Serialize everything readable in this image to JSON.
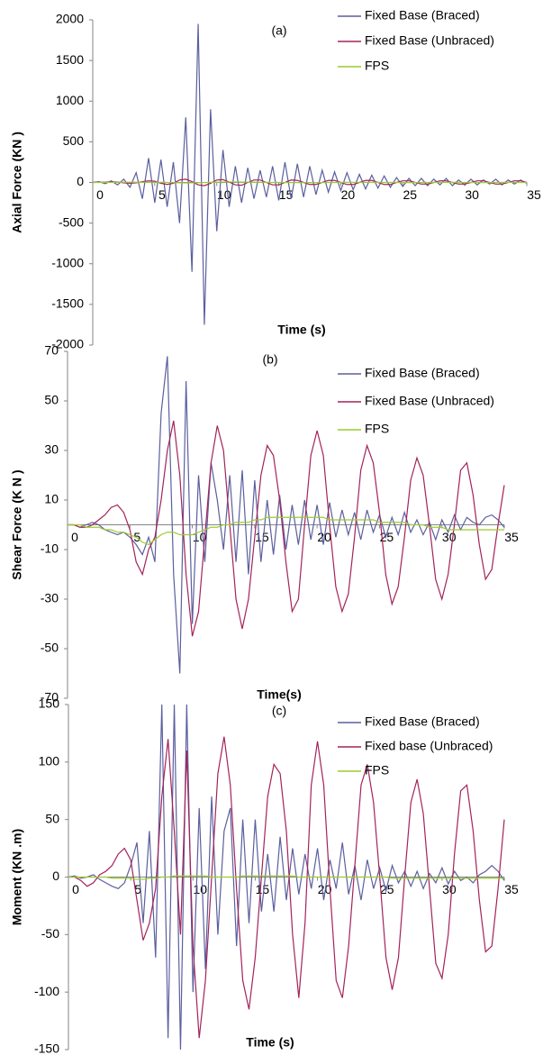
{
  "chart_data": [
    {
      "type": "line",
      "title": "(a)",
      "x_label": "Time (s)",
      "y_label": "Axial Force (KN )",
      "legend": "upper right",
      "x": [
        0,
        0.5,
        1,
        1.5,
        2,
        2.5,
        3,
        3.5,
        4,
        4.5,
        5,
        5.5,
        6,
        6.5,
        7,
        7.5,
        8,
        8.5,
        9,
        9.5,
        10,
        10.5,
        11,
        11.5,
        12,
        12.5,
        13,
        13.5,
        14,
        14.5,
        15,
        15.5,
        16,
        16.5,
        17,
        17.5,
        18,
        18.5,
        19,
        19.5,
        20,
        20.5,
        21,
        21.5,
        22,
        22.5,
        23,
        23.5,
        24,
        24.5,
        25,
        25.5,
        26,
        26.5,
        27,
        27.5,
        28,
        28.5,
        29,
        29.5,
        30,
        30.5,
        31,
        31.5,
        32,
        32.5,
        33,
        33.5,
        34,
        34.5,
        35
      ],
      "xlim": [
        0,
        35
      ],
      "xticks": [
        0,
        5,
        10,
        15,
        20,
        25,
        30,
        35
      ],
      "ylim": [
        -2000,
        2000
      ],
      "yticks": [
        2000,
        1500,
        1000,
        500,
        0,
        -500,
        -1000,
        -1500,
        -2000
      ],
      "series": [
        {
          "name": "Fixed Base (Braced)",
          "color": "#5b5f9e",
          "values": [
            0,
            10,
            -15,
            20,
            -30,
            40,
            -60,
            120,
            -200,
            300,
            -250,
            280,
            -300,
            250,
            -500,
            800,
            -1100,
            1950,
            -1750,
            900,
            -600,
            400,
            -300,
            200,
            -250,
            180,
            -200,
            150,
            -180,
            200,
            -220,
            250,
            -200,
            230,
            -180,
            200,
            -150,
            150,
            -120,
            130,
            -100,
            120,
            -90,
            100,
            -80,
            90,
            -70,
            80,
            -60,
            60,
            -50,
            50,
            -40,
            50,
            -40,
            40,
            -30,
            50,
            -40,
            30,
            -30,
            40,
            -30,
            30,
            -20,
            40,
            -30,
            30,
            -20,
            30,
            -10
          ]
        },
        {
          "name": "Fixed Base (Unbraced)",
          "color": "#a3235a",
          "values": [
            0,
            2,
            5,
            8,
            5,
            -5,
            -10,
            -5,
            10,
            20,
            15,
            -10,
            -25,
            -10,
            30,
            40,
            10,
            -30,
            -40,
            -10,
            30,
            35,
            5,
            -30,
            -35,
            0,
            30,
            30,
            0,
            -30,
            -30,
            0,
            30,
            25,
            0,
            -25,
            -25,
            0,
            25,
            25,
            0,
            -25,
            -25,
            0,
            25,
            25,
            0,
            -25,
            -25,
            0,
            20,
            20,
            0,
            -20,
            -20,
            0,
            20,
            20,
            0,
            -20,
            -20,
            0,
            20,
            20,
            0,
            -20,
            -20,
            0,
            20,
            20,
            0
          ]
        },
        {
          "name": "FPS",
          "color": "#9ccb2f",
          "values": [
            0,
            0,
            1,
            1,
            2,
            2,
            3,
            3,
            3,
            2,
            2,
            1,
            0,
            -2,
            -4,
            -6,
            -5,
            -3,
            -1,
            1,
            3,
            5,
            6,
            6,
            5,
            4,
            3,
            2,
            1,
            0,
            0,
            -1,
            -1,
            -2,
            -2,
            -2,
            -1,
            -1,
            0,
            0,
            1,
            1,
            1,
            2,
            2,
            1,
            1,
            0,
            0,
            0,
            -1,
            -1,
            -1,
            0,
            0,
            0,
            1,
            1,
            1,
            0,
            0,
            0,
            -1,
            -1,
            0,
            0,
            0,
            1,
            1,
            0,
            0
          ]
        }
      ]
    },
    {
      "type": "line",
      "title": "(b)",
      "x_label": "Time(s)",
      "y_label": "Shear Force (K N )",
      "legend": "upper right",
      "x": [
        0,
        0.5,
        1,
        1.5,
        2,
        2.5,
        3,
        3.5,
        4,
        4.5,
        5,
        5.5,
        6,
        6.5,
        7,
        7.5,
        8,
        8.5,
        9,
        9.5,
        10,
        10.5,
        11,
        11.5,
        12,
        12.5,
        13,
        13.5,
        14,
        14.5,
        15,
        15.5,
        16,
        16.5,
        17,
        17.5,
        18,
        18.5,
        19,
        19.5,
        20,
        20.5,
        21,
        21.5,
        22,
        22.5,
        23,
        23.5,
        24,
        24.5,
        25,
        25.5,
        26,
        26.5,
        27,
        27.5,
        28,
        28.5,
        29,
        29.5,
        30,
        30.5,
        31,
        31.5,
        32,
        32.5,
        33,
        33.5,
        34,
        34.5,
        35
      ],
      "xlim": [
        0,
        35
      ],
      "xticks": [
        0,
        5,
        10,
        15,
        20,
        25,
        30,
        35
      ],
      "ylim": [
        -70,
        70
      ],
      "yticks": [
        70,
        50,
        30,
        10,
        -10,
        -30,
        -50,
        -70
      ],
      "series": [
        {
          "name": "Fixed Base (Braced)",
          "color": "#5b5f9e",
          "values": [
            0,
            0,
            -1,
            0,
            1,
            0,
            -2,
            -3,
            -4,
            -3,
            -5,
            -8,
            -12,
            -5,
            -15,
            45,
            68,
            -20,
            -60,
            58,
            -40,
            20,
            -15,
            25,
            10,
            -10,
            20,
            -15,
            22,
            -20,
            18,
            -15,
            10,
            -12,
            12,
            -10,
            8,
            -8,
            10,
            -6,
            8,
            -8,
            9,
            -5,
            6,
            -4,
            5,
            -6,
            6,
            -3,
            4,
            -5,
            3,
            -4,
            5,
            -3,
            2,
            -4,
            1,
            -6,
            2,
            -3,
            4,
            -2,
            3,
            1,
            0,
            3,
            4,
            2,
            -1
          ]
        },
        {
          "name": "Fixed Base (Unbraced)",
          "color": "#a3235a",
          "values": [
            0,
            0,
            -1,
            -1,
            0,
            2,
            4,
            7,
            8,
            5,
            -2,
            -15,
            -20,
            -10,
            -5,
            10,
            30,
            42,
            20,
            -20,
            -45,
            -35,
            -5,
            25,
            40,
            30,
            0,
            -30,
            -42,
            -30,
            -5,
            20,
            32,
            28,
            10,
            -15,
            -35,
            -30,
            0,
            28,
            38,
            28,
            0,
            -25,
            -35,
            -28,
            -5,
            22,
            32,
            25,
            5,
            -20,
            -32,
            -25,
            -5,
            18,
            27,
            20,
            0,
            -22,
            -30,
            -20,
            0,
            22,
            25,
            12,
            -8,
            -22,
            -18,
            0,
            16
          ]
        },
        {
          "name": "FPS",
          "color": "#9ccb2f",
          "values": [
            0,
            0,
            0,
            -1,
            -1,
            -1,
            -2,
            -2,
            -3,
            -3,
            -4,
            -5,
            -7,
            -8,
            -6,
            -4,
            -3,
            -3,
            -4,
            -4,
            -4,
            -3,
            -2,
            -1,
            -1,
            0,
            0,
            1,
            1,
            1,
            2,
            2,
            3,
            3,
            3,
            3,
            3,
            3,
            3,
            3,
            3,
            3,
            2,
            2,
            2,
            2,
            2,
            2,
            2,
            2,
            1,
            1,
            1,
            1,
            1,
            0,
            0,
            0,
            -1,
            -1,
            -1,
            -2,
            -2,
            -2,
            -2,
            -2,
            -2,
            -2,
            -2,
            -2,
            -2
          ]
        }
      ]
    },
    {
      "type": "line",
      "title": "(c)",
      "x_label": "Time (s)",
      "y_label": "Moment (KN .m)",
      "legend": "upper right",
      "x": [
        0,
        0.5,
        1,
        1.5,
        2,
        2.5,
        3,
        3.5,
        4,
        4.5,
        5,
        5.5,
        6,
        6.5,
        7,
        7.5,
        8,
        8.5,
        9,
        9.5,
        10,
        10.5,
        11,
        11.5,
        12,
        12.5,
        13,
        13.5,
        14,
        14.5,
        15,
        15.5,
        16,
        16.5,
        17,
        17.5,
        18,
        18.5,
        19,
        19.5,
        20,
        20.5,
        21,
        21.5,
        22,
        22.5,
        23,
        23.5,
        24,
        24.5,
        25,
        25.5,
        26,
        26.5,
        27,
        27.5,
        28,
        28.5,
        29,
        29.5,
        30,
        30.5,
        31,
        31.5,
        32,
        32.5,
        33,
        33.5,
        34,
        34.5,
        35
      ],
      "xlim": [
        0,
        35
      ],
      "xticks": [
        0,
        5,
        10,
        15,
        20,
        25,
        30,
        35
      ],
      "ylim": [
        -150,
        150
      ],
      "yticks": [
        150,
        100,
        50,
        0,
        -50,
        -100,
        -150
      ],
      "series": [
        {
          "name": "Fixed Base (Braced)",
          "color": "#5b5f9e",
          "values": [
            0,
            1,
            -1,
            0,
            2,
            -2,
            -5,
            -8,
            -10,
            -5,
            10,
            30,
            -40,
            40,
            -70,
            150,
            -140,
            150,
            -150,
            150,
            -100,
            60,
            -80,
            70,
            -50,
            40,
            60,
            -60,
            50,
            -40,
            50,
            -30,
            20,
            -30,
            35,
            -20,
            25,
            -15,
            20,
            -10,
            25,
            -20,
            15,
            -10,
            30,
            -15,
            10,
            -20,
            15,
            -10,
            8,
            -12,
            10,
            -5,
            5,
            -8,
            5,
            -10,
            3,
            -5,
            8,
            -6,
            5,
            -3,
            0,
            -5,
            2,
            5,
            10,
            5,
            -3
          ]
        },
        {
          "name": "Fixed base (Unbraced)",
          "color": "#a3235a",
          "values": [
            0,
            0,
            -3,
            -8,
            -5,
            2,
            5,
            10,
            20,
            25,
            15,
            -20,
            -55,
            -40,
            -10,
            70,
            120,
            40,
            -50,
            110,
            -60,
            -140,
            -90,
            0,
            90,
            122,
            80,
            -10,
            -90,
            -115,
            -70,
            0,
            70,
            98,
            90,
            40,
            -50,
            -105,
            -40,
            80,
            118,
            80,
            -10,
            -90,
            -105,
            -60,
            10,
            80,
            98,
            65,
            0,
            -70,
            -98,
            -70,
            0,
            65,
            85,
            55,
            -10,
            -75,
            -88,
            -50,
            20,
            75,
            80,
            40,
            -20,
            -65,
            -60,
            -10,
            50
          ]
        },
        {
          "name": "FPS",
          "color": "#9ccb2f",
          "values": [
            0,
            0,
            0,
            0,
            0,
            0,
            0,
            -1,
            -1,
            -1,
            -1,
            -2,
            -2,
            -1,
            -1,
            0,
            0,
            1,
            1,
            1,
            1,
            1,
            1,
            0,
            0,
            0,
            0,
            0,
            1,
            1,
            1,
            1,
            1,
            1,
            1,
            1,
            1,
            0,
            0,
            0,
            0,
            0,
            0,
            0,
            0,
            0,
            0,
            0,
            0,
            0,
            0,
            0,
            -1,
            -1,
            -1,
            -1,
            -1,
            -1,
            -1,
            -1,
            -1,
            -1,
            -1,
            -1,
            -1,
            -1,
            -1,
            -1,
            -1,
            -1,
            -1
          ]
        }
      ]
    }
  ]
}
